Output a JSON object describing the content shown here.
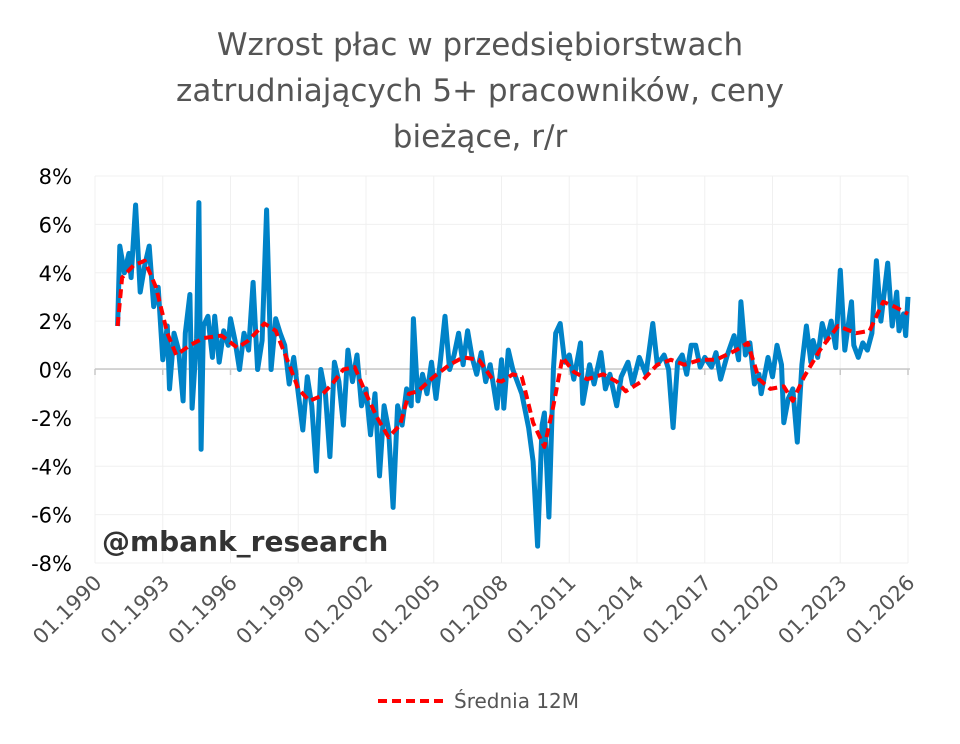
{
  "chart_data": {
    "type": "line",
    "title": [
      "Wzrost płac w przedsiębiorstwach",
      "zatrudniających 5+ pracowników, ceny",
      "bieżące, r/r"
    ],
    "xlabel": "",
    "ylabel": "",
    "ylim": [
      -8,
      8
    ],
    "xlim": [
      1990,
      2026
    ],
    "y_ticks": [
      8,
      6,
      4,
      2,
      0,
      -2,
      -4,
      -6,
      -8
    ],
    "y_tick_labels": [
      "8%",
      "6%",
      "4%",
      "2%",
      "0%",
      "-2%",
      "-4%",
      "-6%",
      "-8%"
    ],
    "x_ticks": [
      1990,
      1993,
      1996,
      1999,
      2002,
      2005,
      2008,
      2011,
      2014,
      2017,
      2020,
      2023,
      2026
    ],
    "x_tick_labels": [
      "01.1990",
      "01.1993",
      "01.1996",
      "01.1999",
      "01.2002",
      "01.2005",
      "01.2008",
      "01.2011",
      "01.2014",
      "01.2017",
      "01.2020",
      "01.2023",
      "01.2026"
    ],
    "grid": true,
    "legend_position": "bottom",
    "watermark": "@mbank_research",
    "series": [
      {
        "name": "",
        "color": "#0083c8",
        "points": [
          [
            1991.0,
            1.8
          ],
          [
            1991.1,
            5.1
          ],
          [
            1991.3,
            4.0
          ],
          [
            1991.5,
            4.8
          ],
          [
            1991.6,
            3.8
          ],
          [
            1991.8,
            6.8
          ],
          [
            1992.0,
            3.2
          ],
          [
            1992.2,
            4.3
          ],
          [
            1992.4,
            5.1
          ],
          [
            1992.6,
            2.6
          ],
          [
            1992.8,
            3.4
          ],
          [
            1993.0,
            0.4
          ],
          [
            1993.2,
            1.8
          ],
          [
            1993.3,
            -0.8
          ],
          [
            1993.5,
            1.5
          ],
          [
            1993.7,
            0.8
          ],
          [
            1993.9,
            -1.3
          ],
          [
            1994.0,
            1.5
          ],
          [
            1994.2,
            3.1
          ],
          [
            1994.3,
            -1.6
          ],
          [
            1994.5,
            1.3
          ],
          [
            1994.6,
            6.9
          ],
          [
            1994.7,
            -3.3
          ],
          [
            1994.8,
            1.8
          ],
          [
            1995.0,
            2.2
          ],
          [
            1995.2,
            0.5
          ],
          [
            1995.3,
            2.2
          ],
          [
            1995.5,
            0.3
          ],
          [
            1995.7,
            1.6
          ],
          [
            1995.9,
            1.0
          ],
          [
            1996.0,
            2.1
          ],
          [
            1996.2,
            1.2
          ],
          [
            1996.4,
            0.0
          ],
          [
            1996.6,
            1.5
          ],
          [
            1996.8,
            0.8
          ],
          [
            1997.0,
            3.6
          ],
          [
            1997.2,
            0.0
          ],
          [
            1997.4,
            1.2
          ],
          [
            1997.6,
            6.6
          ],
          [
            1997.8,
            0.0
          ],
          [
            1998.0,
            2.1
          ],
          [
            1998.2,
            1.5
          ],
          [
            1998.4,
            1.0
          ],
          [
            1998.6,
            -0.6
          ],
          [
            1998.8,
            0.5
          ],
          [
            1999.0,
            -1.0
          ],
          [
            1999.2,
            -2.5
          ],
          [
            1999.4,
            -0.3
          ],
          [
            1999.6,
            -1.5
          ],
          [
            1999.8,
            -4.2
          ],
          [
            2000.0,
            0.0
          ],
          [
            2000.2,
            -1.0
          ],
          [
            2000.4,
            -3.6
          ],
          [
            2000.6,
            0.3
          ],
          [
            2000.8,
            -0.5
          ],
          [
            2001.0,
            -2.3
          ],
          [
            2001.2,
            0.8
          ],
          [
            2001.4,
            -0.5
          ],
          [
            2001.6,
            0.6
          ],
          [
            2001.8,
            -1.5
          ],
          [
            2002.0,
            -0.8
          ],
          [
            2002.2,
            -2.7
          ],
          [
            2002.4,
            -1.0
          ],
          [
            2002.6,
            -4.4
          ],
          [
            2002.8,
            -1.5
          ],
          [
            2003.0,
            -2.5
          ],
          [
            2003.2,
            -5.7
          ],
          [
            2003.4,
            -1.5
          ],
          [
            2003.6,
            -2.3
          ],
          [
            2003.8,
            -0.8
          ],
          [
            2004.0,
            -1.5
          ],
          [
            2004.1,
            2.1
          ],
          [
            2004.3,
            -1.3
          ],
          [
            2004.5,
            -0.2
          ],
          [
            2004.7,
            -1.0
          ],
          [
            2004.9,
            0.3
          ],
          [
            2005.1,
            -1.2
          ],
          [
            2005.3,
            0.4
          ],
          [
            2005.5,
            2.2
          ],
          [
            2005.7,
            0.0
          ],
          [
            2005.9,
            0.6
          ],
          [
            2006.1,
            1.5
          ],
          [
            2006.3,
            0.2
          ],
          [
            2006.5,
            1.6
          ],
          [
            2006.7,
            0.5
          ],
          [
            2006.9,
            -0.2
          ],
          [
            2007.1,
            0.7
          ],
          [
            2007.3,
            -0.5
          ],
          [
            2007.5,
            0.2
          ],
          [
            2007.8,
            -1.6
          ],
          [
            2008.0,
            0.4
          ],
          [
            2008.1,
            -1.6
          ],
          [
            2008.3,
            0.8
          ],
          [
            2008.5,
            0.0
          ],
          [
            2008.7,
            -0.5
          ],
          [
            2008.9,
            -1.0
          ],
          [
            2009.2,
            -2.4
          ],
          [
            2009.4,
            -3.8
          ],
          [
            2009.6,
            -7.3
          ],
          [
            2009.8,
            -2.3
          ],
          [
            2009.9,
            -1.8
          ],
          [
            2010.1,
            -6.1
          ],
          [
            2010.3,
            0.0
          ],
          [
            2010.4,
            1.5
          ],
          [
            2010.6,
            1.9
          ],
          [
            2010.8,
            0.3
          ],
          [
            2011.0,
            0.6
          ],
          [
            2011.2,
            -0.4
          ],
          [
            2011.5,
            1.1
          ],
          [
            2011.6,
            -1.4
          ],
          [
            2011.9,
            0.2
          ],
          [
            2012.1,
            -0.6
          ],
          [
            2012.4,
            0.7
          ],
          [
            2012.6,
            -0.8
          ],
          [
            2012.8,
            -0.2
          ],
          [
            2013.1,
            -1.5
          ],
          [
            2013.3,
            -0.3
          ],
          [
            2013.6,
            0.3
          ],
          [
            2013.8,
            -0.6
          ],
          [
            2014.1,
            0.5
          ],
          [
            2014.4,
            -0.2
          ],
          [
            2014.7,
            1.9
          ],
          [
            2014.9,
            0.2
          ],
          [
            2015.2,
            0.6
          ],
          [
            2015.4,
            0.0
          ],
          [
            2015.6,
            -2.4
          ],
          [
            2015.8,
            0.3
          ],
          [
            2016.0,
            0.6
          ],
          [
            2016.2,
            -0.2
          ],
          [
            2016.4,
            1.0
          ],
          [
            2016.6,
            1.0
          ],
          [
            2016.8,
            0.1
          ],
          [
            2017.0,
            0.5
          ],
          [
            2017.3,
            0.1
          ],
          [
            2017.5,
            0.7
          ],
          [
            2017.7,
            -0.4
          ],
          [
            2018.0,
            0.6
          ],
          [
            2018.3,
            1.4
          ],
          [
            2018.5,
            0.4
          ],
          [
            2018.6,
            2.8
          ],
          [
            2018.8,
            0.6
          ],
          [
            2019.0,
            1.1
          ],
          [
            2019.2,
            -0.6
          ],
          [
            2019.4,
            -0.2
          ],
          [
            2019.5,
            -1.0
          ],
          [
            2019.8,
            0.5
          ],
          [
            2020.0,
            -0.3
          ],
          [
            2020.2,
            1.0
          ],
          [
            2020.4,
            0.2
          ],
          [
            2020.5,
            -2.2
          ],
          [
            2020.7,
            -1.2
          ],
          [
            2020.9,
            -0.8
          ],
          [
            2021.1,
            -3.0
          ],
          [
            2021.3,
            0.2
          ],
          [
            2021.5,
            1.8
          ],
          [
            2021.7,
            0.3
          ],
          [
            2021.8,
            1.2
          ],
          [
            2022.0,
            0.5
          ],
          [
            2022.2,
            1.9
          ],
          [
            2022.4,
            1.2
          ],
          [
            2022.6,
            2.0
          ],
          [
            2022.8,
            0.9
          ],
          [
            2023.0,
            4.1
          ],
          [
            2023.2,
            0.8
          ],
          [
            2023.5,
            2.8
          ],
          [
            2023.6,
            1.0
          ],
          [
            2023.8,
            0.5
          ],
          [
            2024.0,
            1.1
          ],
          [
            2024.2,
            0.8
          ],
          [
            2024.4,
            1.5
          ],
          [
            2024.6,
            4.5
          ],
          [
            2024.8,
            2.0
          ],
          [
            2025.1,
            4.4
          ],
          [
            2025.3,
            1.8
          ],
          [
            2025.5,
            3.2
          ],
          [
            2025.6,
            1.6
          ],
          [
            2025.8,
            2.3
          ],
          [
            2025.9,
            1.4
          ],
          [
            2026.0,
            3.0
          ]
        ]
      },
      {
        "name": "Średnia 12M",
        "color": "#ff0000",
        "points": [
          [
            1991.0,
            1.8
          ],
          [
            1991.2,
            3.8
          ],
          [
            1991.7,
            4.3
          ],
          [
            1992.2,
            4.5
          ],
          [
            1992.7,
            3.4
          ],
          [
            1993.2,
            1.5
          ],
          [
            1993.6,
            0.6
          ],
          [
            1994.2,
            1.0
          ],
          [
            1994.8,
            1.3
          ],
          [
            1995.6,
            1.4
          ],
          [
            1996.3,
            0.9
          ],
          [
            1996.8,
            1.2
          ],
          [
            1997.5,
            1.9
          ],
          [
            1998.0,
            1.6
          ],
          [
            1998.6,
            0.2
          ],
          [
            1999.0,
            -0.8
          ],
          [
            1999.5,
            -1.3
          ],
          [
            2000.0,
            -1.1
          ],
          [
            2000.5,
            -0.6
          ],
          [
            2001.0,
            0.0
          ],
          [
            2001.5,
            0.1
          ],
          [
            2002.0,
            -1.0
          ],
          [
            2002.5,
            -2.0
          ],
          [
            2003.0,
            -2.8
          ],
          [
            2003.5,
            -2.3
          ],
          [
            2003.9,
            -1.0
          ],
          [
            2004.3,
            -0.9
          ],
          [
            2005.0,
            -0.3
          ],
          [
            2005.7,
            0.2
          ],
          [
            2006.3,
            0.5
          ],
          [
            2007.0,
            0.4
          ],
          [
            2007.6,
            -0.4
          ],
          [
            2008.0,
            -0.5
          ],
          [
            2008.5,
            -0.2
          ],
          [
            2008.9,
            -0.3
          ],
          [
            2009.4,
            -2.2
          ],
          [
            2009.9,
            -3.2
          ],
          [
            2010.3,
            -1.5
          ],
          [
            2010.7,
            0.5
          ],
          [
            2011.2,
            -0.1
          ],
          [
            2011.8,
            -0.4
          ],
          [
            2012.5,
            -0.2
          ],
          [
            2013.1,
            -0.5
          ],
          [
            2013.5,
            -0.9
          ],
          [
            2014.2,
            -0.5
          ],
          [
            2014.9,
            0.2
          ],
          [
            2015.5,
            0.4
          ],
          [
            2016.1,
            0.2
          ],
          [
            2016.8,
            0.4
          ],
          [
            2017.5,
            0.4
          ],
          [
            2018.4,
            0.8
          ],
          [
            2018.9,
            1.1
          ],
          [
            2019.4,
            -0.4
          ],
          [
            2019.9,
            -0.8
          ],
          [
            2020.5,
            -0.7
          ],
          [
            2020.9,
            -1.3
          ],
          [
            2021.4,
            -0.3
          ],
          [
            2022.1,
            0.8
          ],
          [
            2022.9,
            1.8
          ],
          [
            2023.7,
            1.5
          ],
          [
            2024.3,
            1.6
          ],
          [
            2024.9,
            2.8
          ],
          [
            2025.4,
            2.6
          ],
          [
            2026.0,
            2.3
          ]
        ]
      }
    ]
  }
}
